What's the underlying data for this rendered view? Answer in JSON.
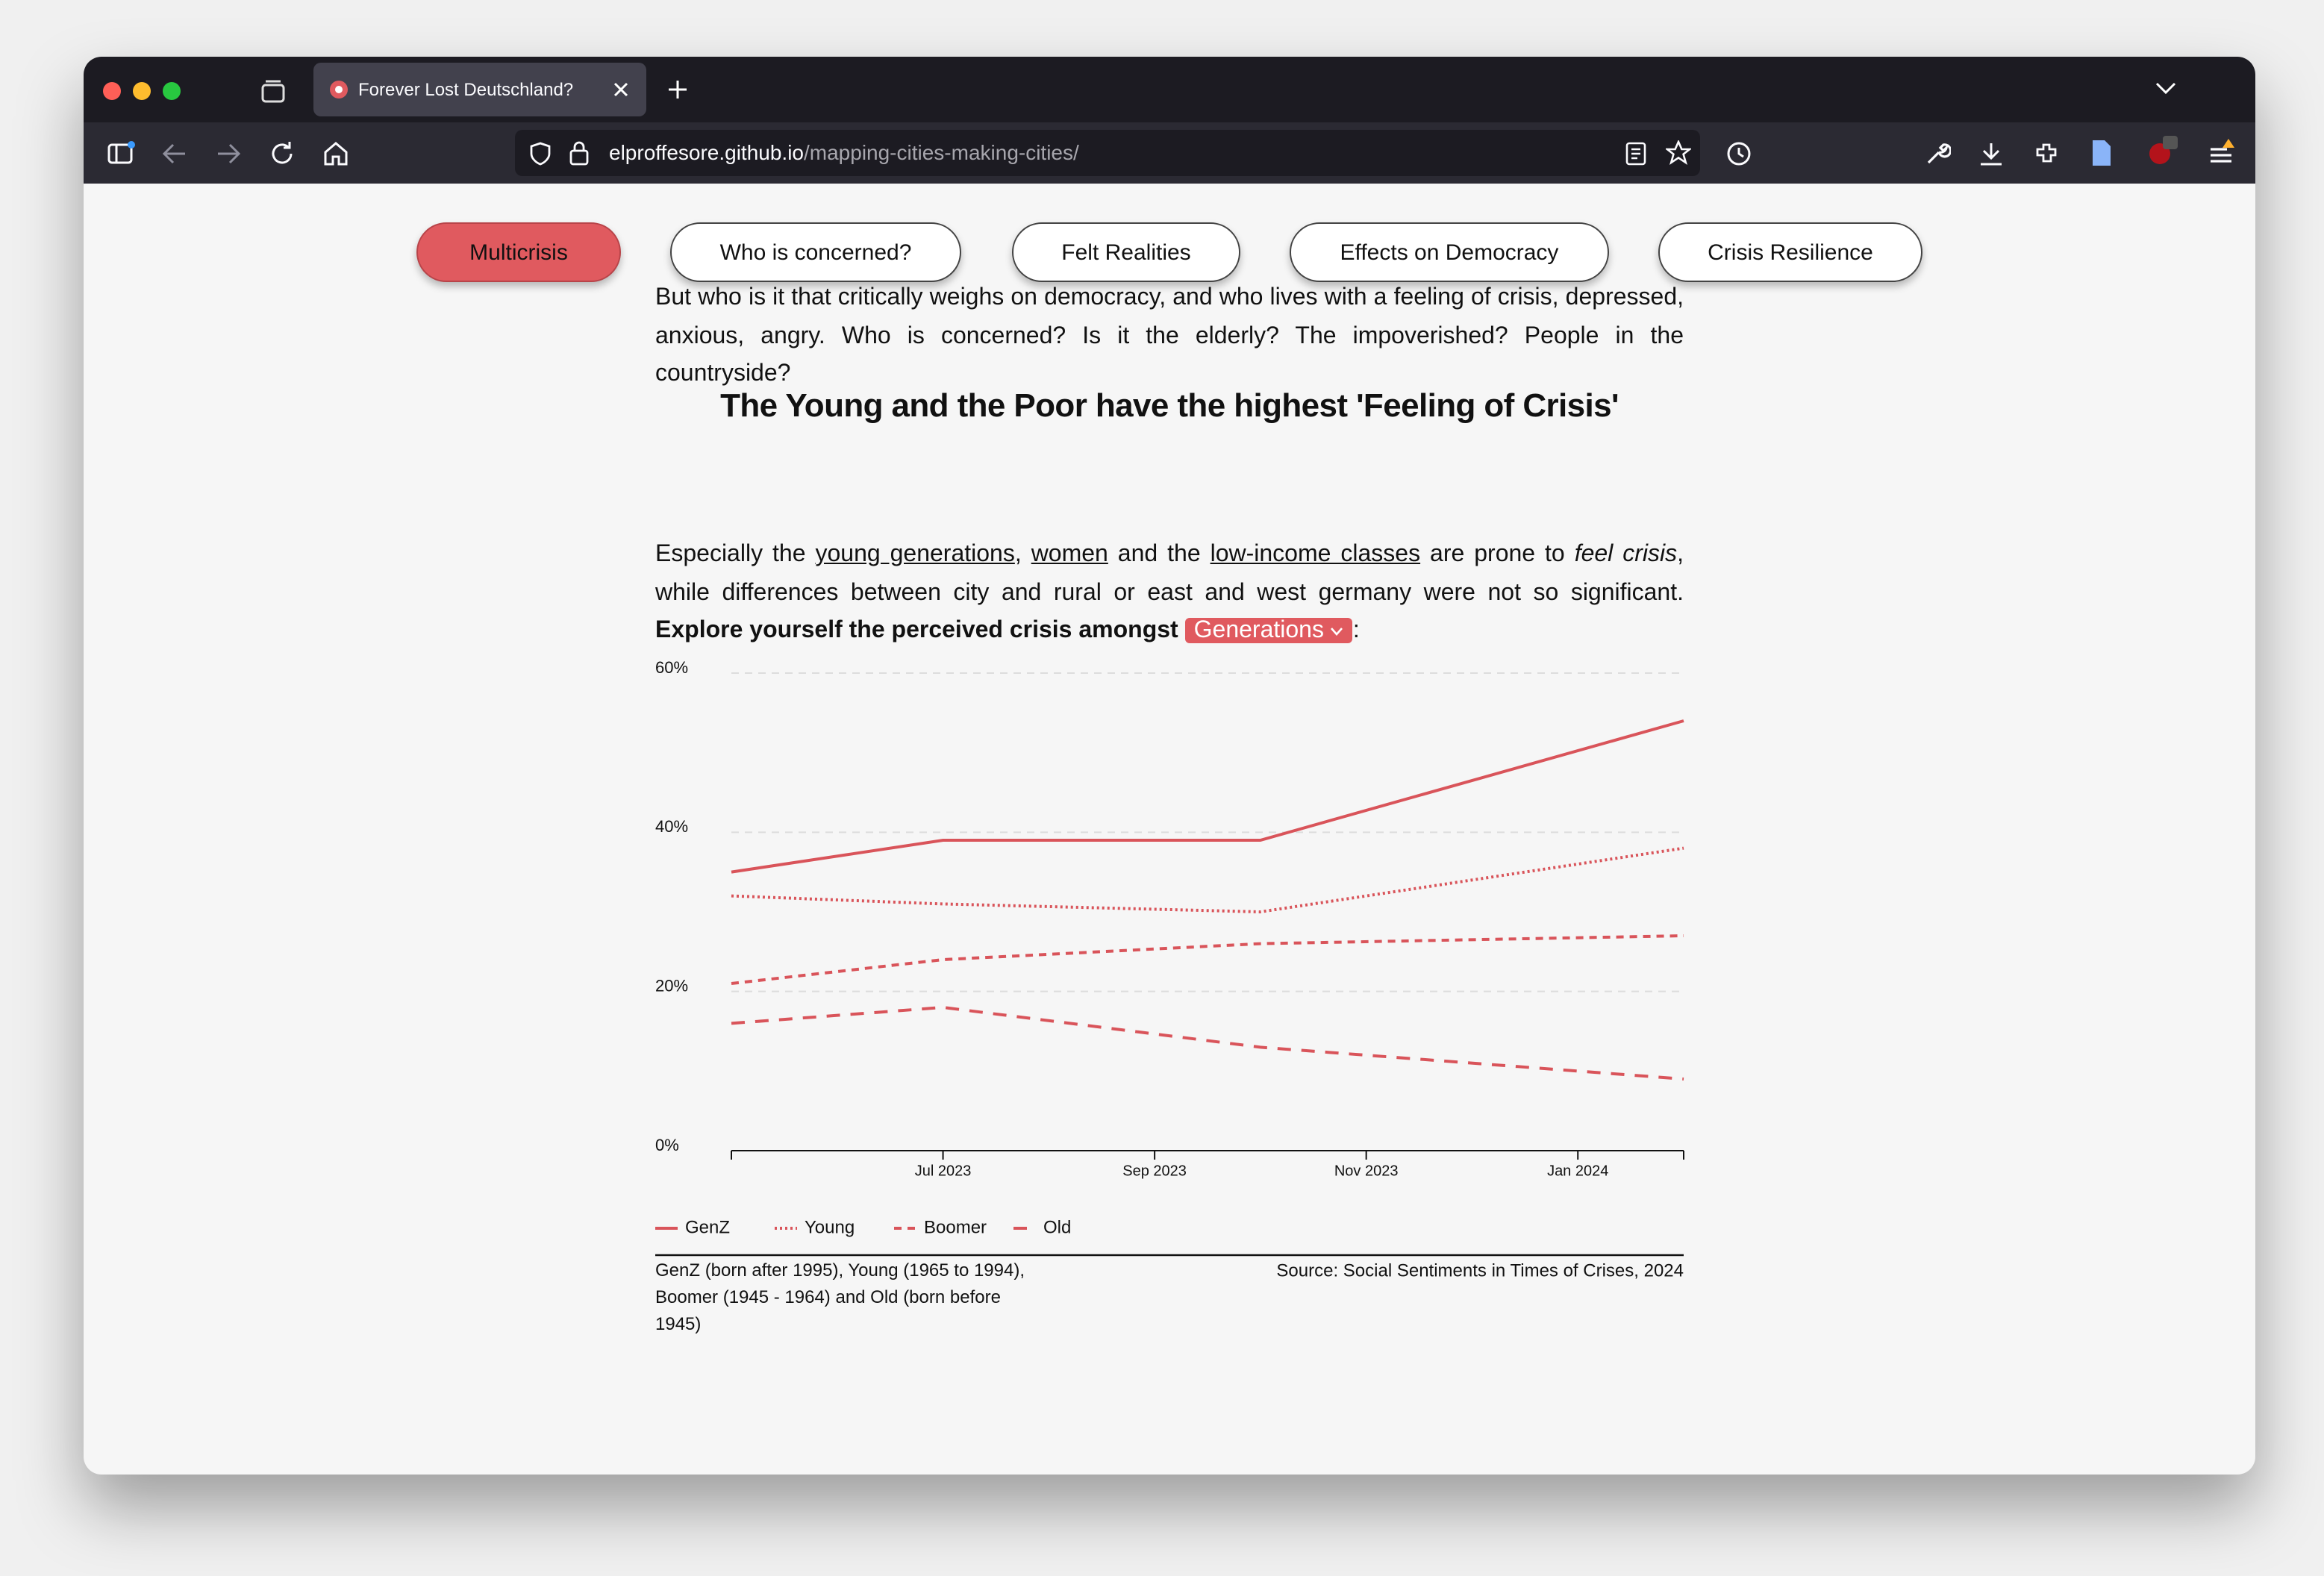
{
  "browser": {
    "tab_title": "Forever Lost Deutschland?",
    "url": {
      "host": "elproffesore.github.io",
      "path": "/mapping-cities-making-cities/"
    }
  },
  "nav": [
    "Multicrisis",
    "Who is concerned?",
    "Felt Realities",
    "Effects on Democracy",
    "Crisis Resilience"
  ],
  "intro": "But who is it that critically weighs on democracy, and who lives with a feeling of crisis, depressed, anxious, angry. Who is concerned? Is it the elderly? The impoverished? People in the countryside?",
  "heading": "The Young and the Poor have the highest 'Feeling of Crisis'",
  "paragraph": {
    "parts": [
      "Especially the ",
      "young generations",
      ", ",
      "women",
      " and the ",
      "low-income classes",
      " are prone to ",
      "feel crisis",
      ", while differences between city and rural or east and west germany were not so significant. "
    ],
    "explore": "Explore yourself the perceived crisis amongst",
    "dropdown": "Generations",
    "end": ":"
  },
  "chart_data": {
    "type": "line",
    "x": [
      "2023-05",
      "2023-07",
      "2023-10",
      "2024-02"
    ],
    "xlim": [
      "2023-05",
      "2024-02"
    ],
    "xticks": [
      {
        "value": "2023-07",
        "label": "Jul 2023"
      },
      {
        "value": "2023-09",
        "label": "Sep 2023"
      },
      {
        "value": "2023-11",
        "label": "Nov 2023"
      },
      {
        "value": "2024-01",
        "label": "Jan 2024"
      }
    ],
    "ylim": [
      0,
      60
    ],
    "yticks": [
      {
        "value": 0,
        "label": "0%"
      },
      {
        "value": 20,
        "label": "20%"
      },
      {
        "value": 40,
        "label": "40%"
      },
      {
        "value": 60,
        "label": "60%"
      }
    ],
    "grid": true,
    "series": [
      {
        "name": "GenZ",
        "color": "#d9545a",
        "dash": "solid",
        "values": [
          35,
          39,
          39,
          54
        ]
      },
      {
        "name": "Young",
        "color": "#d9545a",
        "dash": "dotted",
        "values": [
          32,
          31,
          30,
          38
        ]
      },
      {
        "name": "Boomer",
        "color": "#d9545a",
        "dash": "dashed",
        "values": [
          21,
          24,
          26,
          27
        ]
      },
      {
        "name": "Old",
        "color": "#d9545a",
        "dash": "long-dashed",
        "values": [
          16,
          18,
          13,
          9
        ]
      }
    ],
    "note": "GenZ (born after 1995), Young (1965 to 1994), Boomer (1945 - 1964) and Old (born before 1945)",
    "source": "Source: Social Sentiments in Times of Crises, 2024"
  }
}
